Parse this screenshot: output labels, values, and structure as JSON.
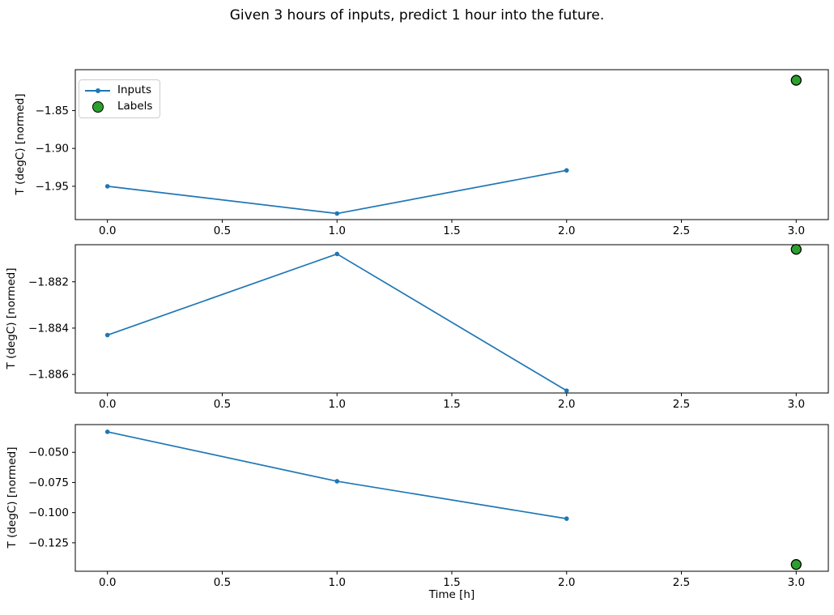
{
  "figure": {
    "title": "Given 3 hours of inputs, predict 1 hour into the future.",
    "xlabel": "Time [h]",
    "ylabel": "T (degC) [normed]",
    "legend": {
      "inputs_label": "Inputs",
      "labels_label": "Labels"
    },
    "colors": {
      "inputs_line": "#1f77b4",
      "labels_fill": "#2ca02c",
      "labels_edge": "#000000",
      "frame": "#000000",
      "text": "#000000",
      "background": "#ffffff",
      "legend_border": "#cccccc"
    }
  },
  "chart_data": [
    {
      "type": "line",
      "ylabel": "T (degC) [normed]",
      "xlabel": "",
      "grid": false,
      "legend": true,
      "legend_position": "upper left",
      "xlim": [
        -0.14,
        3.14
      ],
      "ylim": [
        -1.994,
        -1.796
      ],
      "x_ticks": {
        "values": [
          0,
          0.5,
          1,
          1.5,
          2,
          2.5,
          3
        ],
        "labels": [
          "0.0",
          "0.5",
          "1.0",
          "1.5",
          "2.0",
          "2.5",
          "3.0"
        ]
      },
      "y_ticks": {
        "values": [
          -1.85,
          -1.9,
          -1.95
        ],
        "labels": [
          "−1.85",
          "−1.90",
          "−1.95"
        ]
      },
      "series": [
        {
          "name": "Inputs",
          "kind": "line",
          "x": [
            0,
            1,
            2
          ],
          "y": [
            -1.95,
            -1.986,
            -1.929
          ]
        },
        {
          "name": "Labels",
          "kind": "scatter",
          "x": [
            3
          ],
          "y": [
            -1.81
          ]
        }
      ]
    },
    {
      "type": "line",
      "ylabel": "T (degC) [normed]",
      "xlabel": "",
      "grid": false,
      "legend": false,
      "xlim": [
        -0.14,
        3.14
      ],
      "ylim": [
        -1.8868,
        -1.8804
      ],
      "x_ticks": {
        "values": [
          0,
          0.5,
          1,
          1.5,
          2,
          2.5,
          3
        ],
        "labels": [
          "0.0",
          "0.5",
          "1.0",
          "1.5",
          "2.0",
          "2.5",
          "3.0"
        ]
      },
      "y_ticks": {
        "values": [
          -1.882,
          -1.884,
          -1.886
        ],
        "labels": [
          "−1.882",
          "−1.884",
          "−1.886"
        ]
      },
      "series": [
        {
          "name": "Inputs",
          "kind": "line",
          "x": [
            0,
            1,
            2
          ],
          "y": [
            -1.8843,
            -1.8808,
            -1.8867
          ]
        },
        {
          "name": "Labels",
          "kind": "scatter",
          "x": [
            3
          ],
          "y": [
            -1.8806
          ]
        }
      ]
    },
    {
      "type": "line",
      "ylabel": "T (degC) [normed]",
      "xlabel": "Time [h]",
      "grid": false,
      "legend": false,
      "xlim": [
        -0.14,
        3.14
      ],
      "ylim": [
        -0.1486,
        -0.027
      ],
      "x_ticks": {
        "values": [
          0,
          0.5,
          1,
          1.5,
          2,
          2.5,
          3
        ],
        "labels": [
          "0.0",
          "0.5",
          "1.0",
          "1.5",
          "2.0",
          "2.5",
          "3.0"
        ]
      },
      "y_ticks": {
        "values": [
          -0.05,
          -0.075,
          -0.1,
          -0.125
        ],
        "labels": [
          "−0.050",
          "−0.075",
          "−0.100",
          "−0.125"
        ]
      },
      "series": [
        {
          "name": "Inputs",
          "kind": "line",
          "x": [
            0,
            1,
            2
          ],
          "y": [
            -0.033,
            -0.074,
            -0.105
          ]
        },
        {
          "name": "Labels",
          "kind": "scatter",
          "x": [
            3
          ],
          "y": [
            -0.143
          ]
        }
      ]
    }
  ]
}
